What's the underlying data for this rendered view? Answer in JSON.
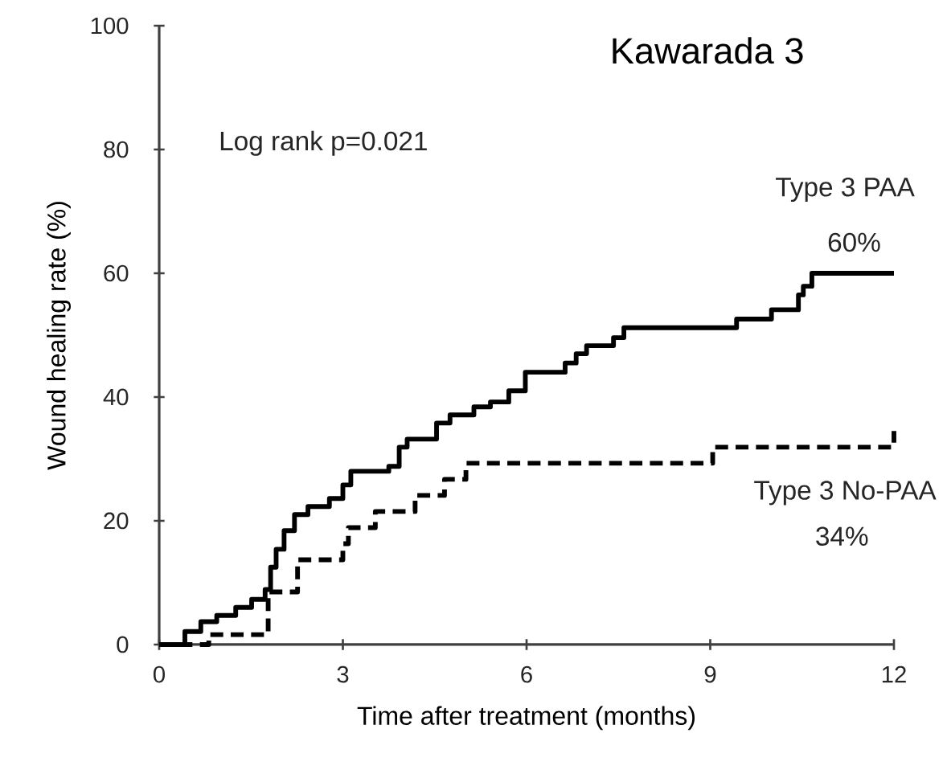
{
  "chart_data": {
    "type": "step",
    "title": "Kawarada 3",
    "xlabel": "Time after treatment (months)",
    "ylabel": "Wound healing rate (%)",
    "xlim": [
      0,
      12
    ],
    "ylim": [
      0,
      100
    ],
    "xticks": [
      0,
      3,
      6,
      9,
      12
    ],
    "yticks": [
      0,
      20,
      40,
      60,
      80,
      100
    ],
    "grid": false,
    "legend": false,
    "marker": "none",
    "annotations": [
      "Log rank p=0.021",
      "60%",
      "34%"
    ],
    "series": [
      {
        "name": "Type 3 PAA",
        "color": "#000000",
        "line_style": "solid",
        "x": [
          0,
          0.42,
          0.68,
          0.94,
          1.25,
          1.51,
          1.73,
          1.82,
          1.91,
          2.04,
          2.21,
          2.43,
          2.78,
          3.0,
          3.13,
          3.75,
          3.92,
          4.05,
          4.53,
          4.75,
          5.14,
          5.41,
          5.71,
          5.98,
          6.63,
          6.81,
          6.98,
          7.42,
          7.59,
          9.43,
          10.0,
          10.44,
          10.52,
          10.66,
          12
        ],
        "values": [
          0,
          2.1,
          3.7,
          4.7,
          6.0,
          7.3,
          8.9,
          12.5,
          15.4,
          18.4,
          21.0,
          22.3,
          23.6,
          25.8,
          28.0,
          28.8,
          31.9,
          33.2,
          35.8,
          37.1,
          38.4,
          39.2,
          41.0,
          44.0,
          45.5,
          47.0,
          48.3,
          49.6,
          51.2,
          52.6,
          54.1,
          56.5,
          57.9,
          60.0,
          60.0
        ]
      },
      {
        "name": "Type 3 No-PAA",
        "color": "#000000",
        "line_style": "dashed",
        "x": [
          0,
          0.81,
          1.78,
          2.26,
          3.0,
          3.09,
          3.53,
          4.18,
          4.66,
          5.01,
          9.04,
          12.0
        ],
        "values": [
          0,
          1.6,
          8.5,
          13.7,
          16.3,
          18.9,
          21.5,
          24.1,
          26.7,
          29.3,
          31.9,
          34.5
        ]
      }
    ]
  }
}
